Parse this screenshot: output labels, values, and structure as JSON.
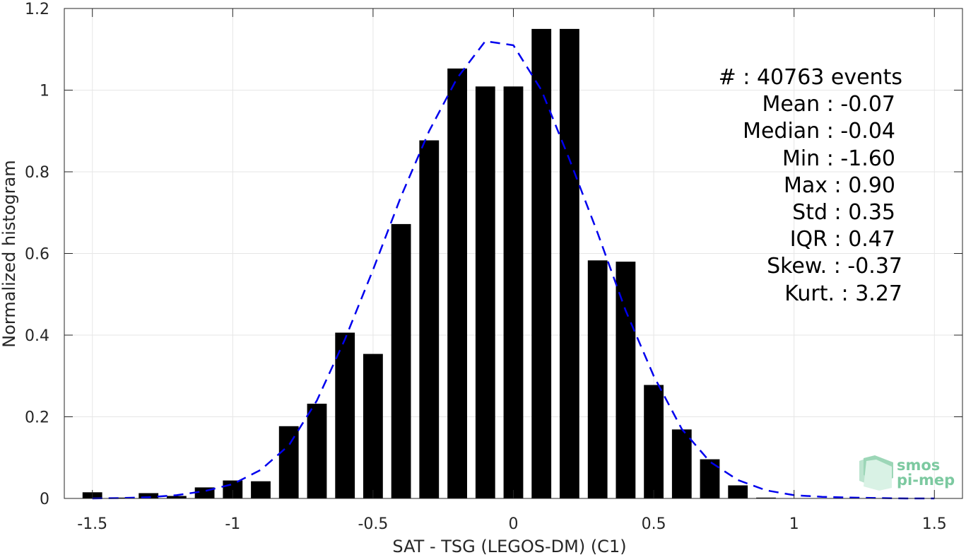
{
  "chart_data": {
    "type": "bar",
    "xlabel": "SAT - TSG (LEGOS-DM) (C1)",
    "ylabel": "Normalized histogram",
    "xlim": [
      -1.6,
      1.6
    ],
    "ylim": [
      0,
      1.2
    ],
    "xticks": [
      -1.5,
      -1,
      -0.5,
      0,
      0.5,
      1,
      1.5
    ],
    "xtick_labels": [
      "-1.5",
      "-1",
      "-0.5",
      "0",
      "0.5",
      "1",
      "1.5"
    ],
    "yticks": [
      0,
      0.2,
      0.4,
      0.6,
      0.8,
      1,
      1.2
    ],
    "ytick_labels": [
      "0",
      "0.2",
      "0.4",
      "0.6",
      "0.8",
      "1",
      "1.2"
    ],
    "grid": true,
    "bar_width": 0.07,
    "bars": {
      "x": [
        -1.5,
        -1.4,
        -1.3,
        -1.2,
        -1.1,
        -1.0,
        -0.9,
        -0.8,
        -0.7,
        -0.6,
        -0.5,
        -0.4,
        -0.3,
        -0.2,
        -0.1,
        0.0,
        0.1,
        0.2,
        0.3,
        0.4,
        0.5,
        0.6,
        0.7,
        0.8,
        0.9
      ],
      "values": [
        0.015,
        0.002,
        0.013,
        0.006,
        0.027,
        0.044,
        0.042,
        0.177,
        0.232,
        0.406,
        0.354,
        0.672,
        0.877,
        1.053,
        1.009,
        1.009,
        1.15,
        1.15,
        0.583,
        0.58,
        0.278,
        0.169,
        0.096,
        0.032,
        0.002
      ],
      "color": "#000000"
    },
    "fit_curve": {
      "style": "dashed",
      "color": "#0000ee",
      "x": [
        -1.5,
        -1.4,
        -1.3,
        -1.2,
        -1.1,
        -1.0,
        -0.9,
        -0.8,
        -0.7,
        -0.6,
        -0.5,
        -0.4,
        -0.3,
        -0.2,
        -0.1,
        0.0,
        0.1,
        0.2,
        0.3,
        0.4,
        0.5,
        0.6,
        0.7,
        0.8,
        0.9,
        1.0,
        1.1,
        1.2,
        1.3,
        1.4,
        1.5
      ],
      "values": [
        0.0,
        0.001,
        0.003,
        0.008,
        0.018,
        0.035,
        0.07,
        0.13,
        0.24,
        0.39,
        0.56,
        0.74,
        0.9,
        1.03,
        1.12,
        1.11,
        1.0,
        0.83,
        0.65,
        0.46,
        0.3,
        0.17,
        0.09,
        0.045,
        0.02,
        0.008,
        0.004,
        0.002,
        0.001,
        0.0,
        0.0
      ]
    },
    "annotations": [
      "#  : 40763 events",
      "Mean : -0.07",
      "Median : -0.04",
      "Min : -1.60",
      "Max : 0.90",
      "Std : 0.35",
      "IQR : 0.47",
      "Skew. : -0.37",
      "Kurt. : 3.27"
    ]
  },
  "logo": {
    "line1": "smos",
    "line2": "pi-mep",
    "color": "#7cc9a0"
  }
}
